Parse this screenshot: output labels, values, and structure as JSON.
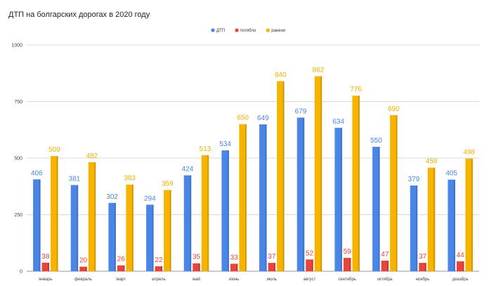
{
  "chart_data": {
    "type": "bar",
    "title": "ДТП на болгарских дорогах в 2020 году",
    "xlabel": "",
    "ylabel": "",
    "ylim": [
      0,
      1000
    ],
    "yticks": [
      0,
      250,
      500,
      750,
      1000
    ],
    "grid": true,
    "legend_position": "top",
    "categories": [
      "январь",
      "февраль",
      "март",
      "апрель",
      "май",
      "июнь",
      "июль",
      "август",
      "сентябрь",
      "октябрь",
      "ноябрь",
      "декабрь"
    ],
    "series": [
      {
        "name": "ДТП",
        "color": "#4a86e8",
        "label_color": "#4a86e8",
        "values": [
          406,
          381,
          302,
          294,
          424,
          534,
          649,
          679,
          634,
          550,
          379,
          405
        ],
        "labels": [
          "406",
          "381",
          "302",
          "294",
          "424",
          "534",
          "649",
          "679",
          "634",
          "550",
          "379",
          "405"
        ]
      },
      {
        "name": "погибло",
        "color": "#e8443a",
        "label_color": "#e8443a",
        "values": [
          38,
          20,
          26,
          22,
          35,
          33,
          37,
          52,
          59,
          47,
          37,
          44
        ],
        "labels": [
          "38",
          "20",
          "26",
          "22",
          "35",
          "33",
          "37",
          "52",
          "59",
          "47",
          "37",
          "44"
        ]
      },
      {
        "name": "ранено",
        "color": "#f6b400",
        "label_color": "#f0b000",
        "values": [
          509,
          482,
          383,
          359,
          513,
          650,
          840,
          862,
          776,
          690,
          458,
          498
        ],
        "labels": [
          "509",
          "482",
          "383",
          "359",
          "513",
          "650",
          "840",
          "862",
          "776",
          "690",
          "458",
          "498"
        ]
      }
    ]
  }
}
